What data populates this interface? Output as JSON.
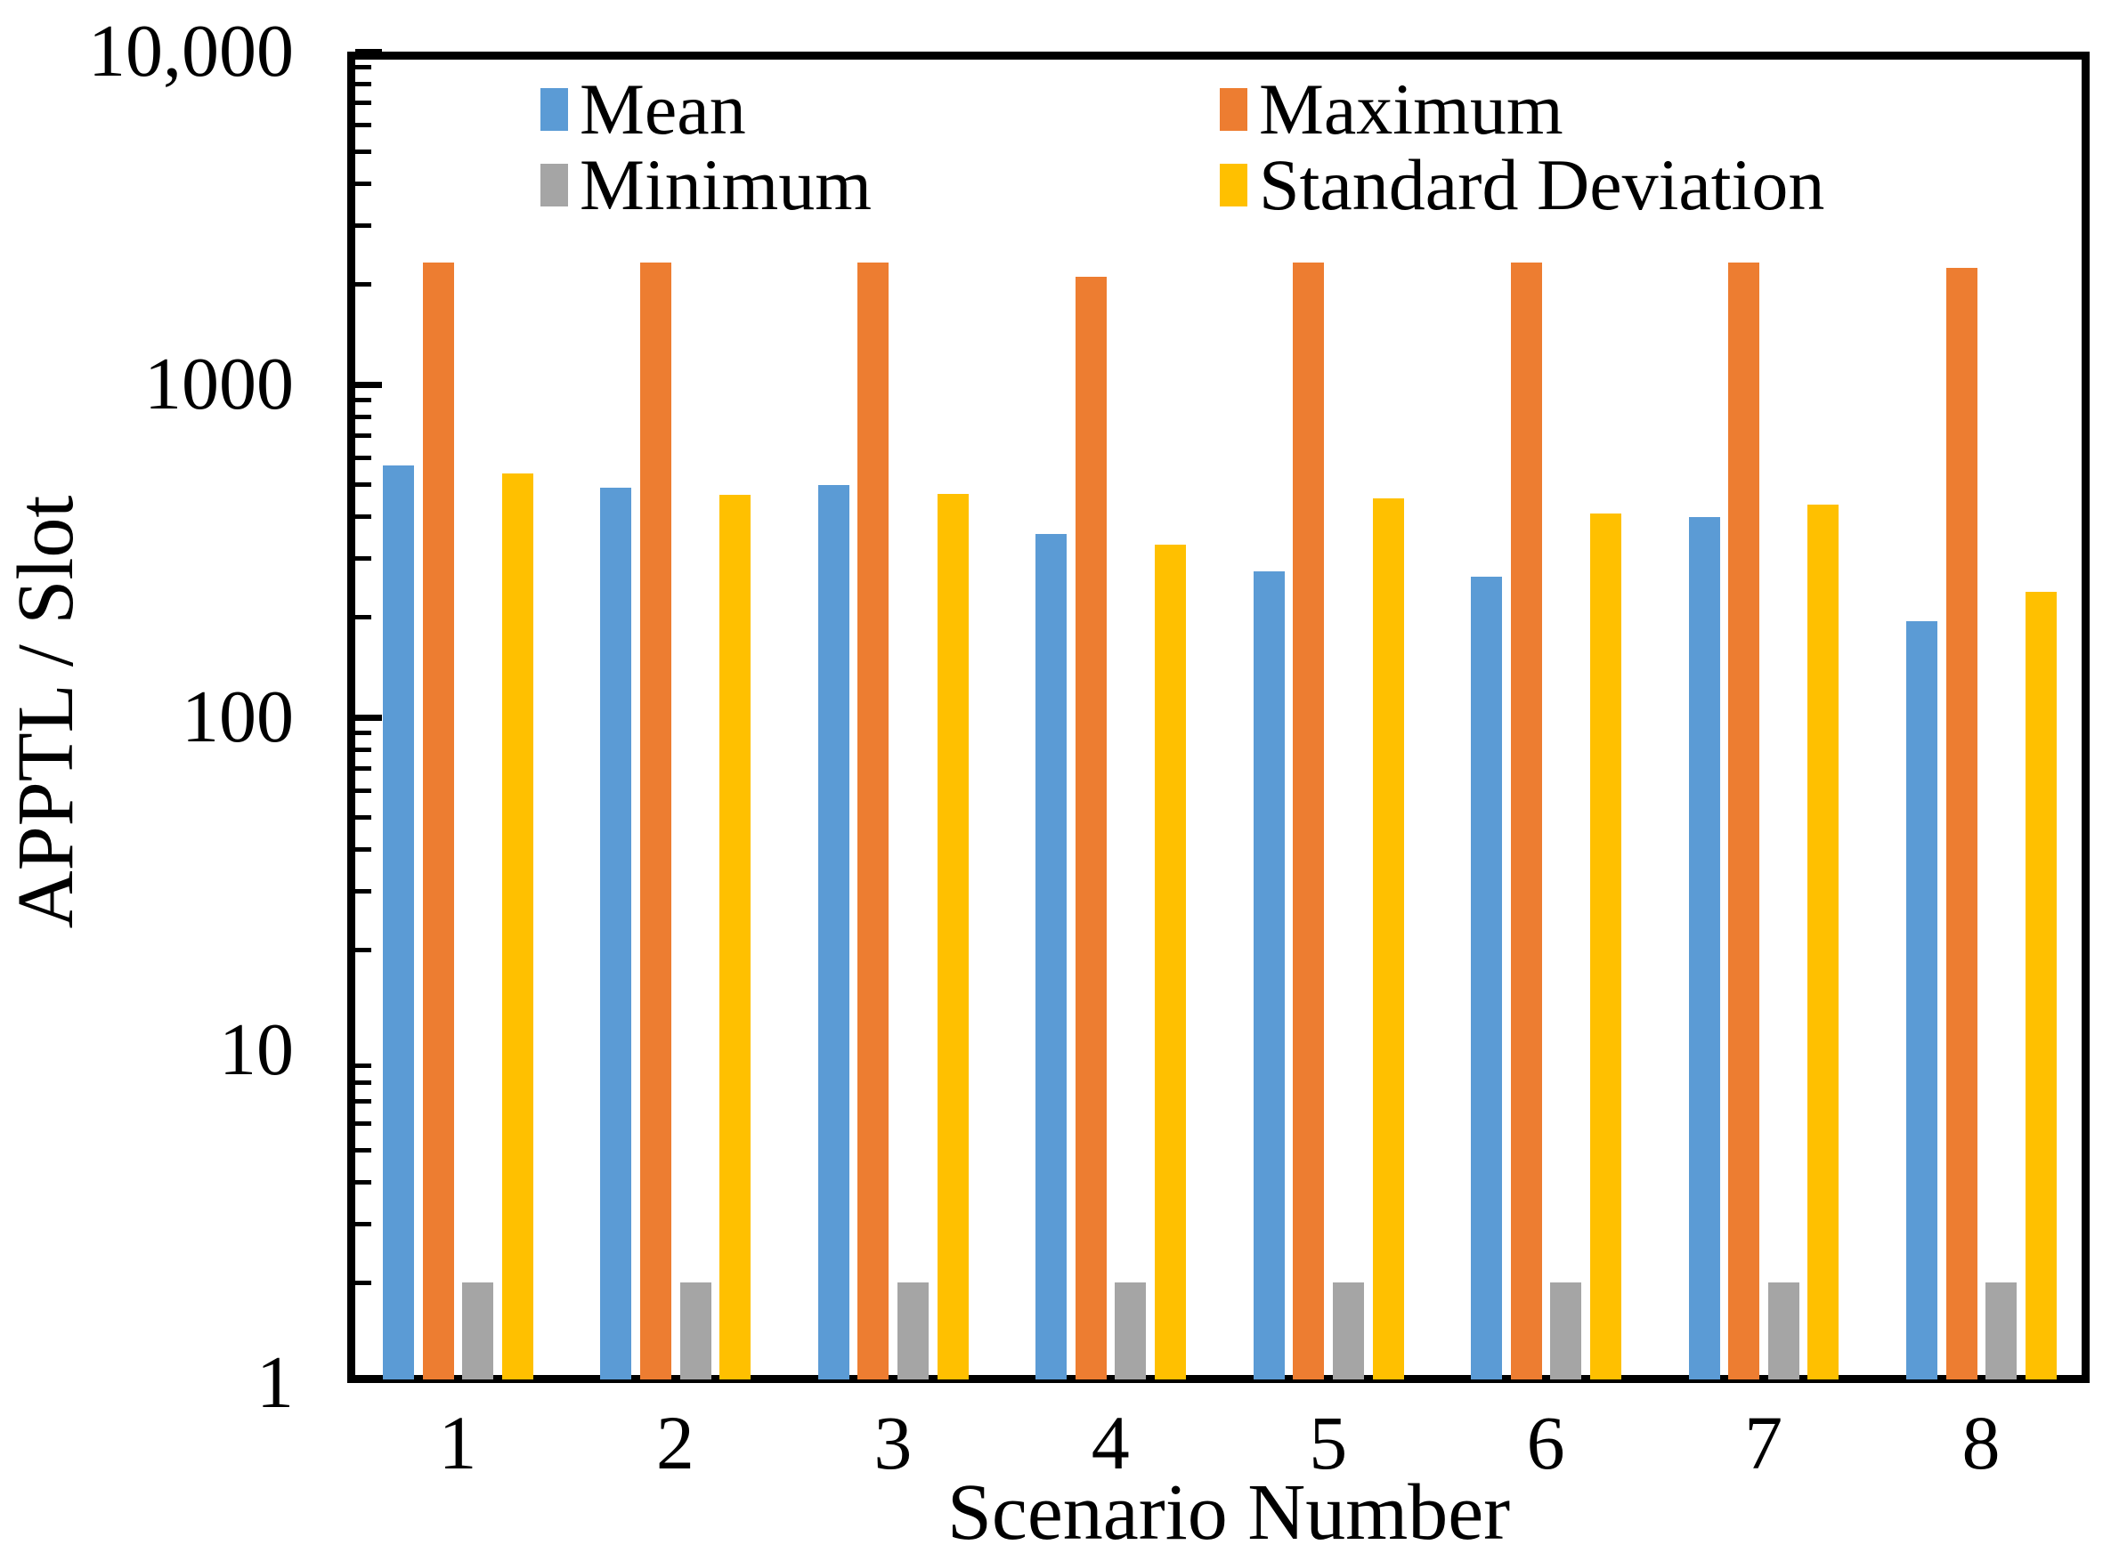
{
  "figure": {
    "background": "#ffffff",
    "x_axis_title": "Scenario Number",
    "y_axis_title": "APPTL / Slot"
  },
  "chart_data": {
    "type": "bar",
    "title": "",
    "xlabel": "Scenario Number",
    "ylabel": "APPTL / Slot",
    "y_scale": "log",
    "ylim": [
      1,
      10000
    ],
    "grid": false,
    "legend_position": "top-inside-two-columns",
    "y_ticks": [
      {
        "value": 10000,
        "label": "10,000"
      },
      {
        "value": 1000,
        "label": "1000"
      },
      {
        "value": 100,
        "label": "100"
      },
      {
        "value": 10,
        "label": "10"
      },
      {
        "value": 1,
        "label": "1"
      }
    ],
    "categories": [
      "1",
      "2",
      "3",
      "4",
      "5",
      "6",
      "7",
      "8"
    ],
    "series": [
      {
        "name": "Mean",
        "color": "#5B9BD5",
        "values": [
          570,
          490,
          500,
          355,
          275,
          265,
          400,
          195
        ]
      },
      {
        "name": "Maximum",
        "color": "#ED7D31",
        "values": [
          2330,
          2330,
          2320,
          2110,
          2320,
          2330,
          2330,
          2240
        ]
      },
      {
        "name": "Minimum",
        "color": "#A5A5A5",
        "values": [
          2,
          2,
          2,
          2,
          2,
          2,
          2,
          2
        ]
      },
      {
        "name": "Standard Deviation",
        "color": "#FFC000",
        "values": [
          540,
          465,
          470,
          330,
          455,
          410,
          435,
          238
        ]
      }
    ]
  }
}
